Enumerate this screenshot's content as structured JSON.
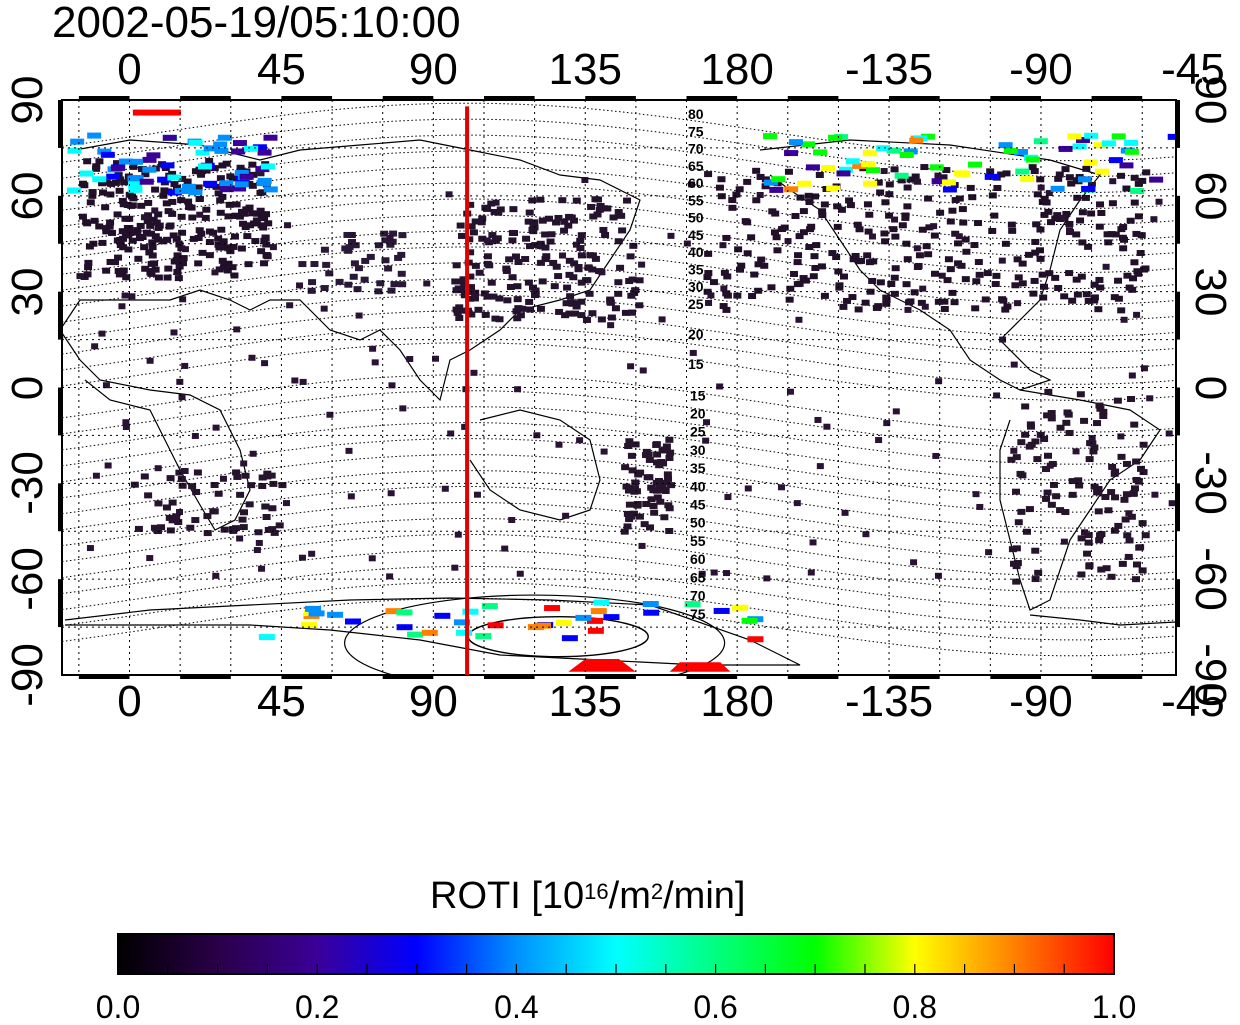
{
  "title": "2002-05-19/05:10:00",
  "map": {
    "lon_top_labels": [
      "0",
      "45",
      "90",
      "135",
      "180",
      "-135",
      "-90",
      "-45"
    ],
    "lon_bottom_labels": [
      "0",
      "45",
      "90",
      "135",
      "180",
      "-135",
      "-90",
      "-45"
    ],
    "lat_left_labels": [
      "90",
      "60",
      "30",
      "0",
      "-30",
      "-60",
      "-90"
    ],
    "lat_right_labels": [
      "90",
      "60",
      "30",
      "0",
      "-30",
      "-60",
      "-90"
    ],
    "lon_range": [
      -20,
      310
    ],
    "lat_range": [
      -90,
      90
    ],
    "terminator_lon": 100,
    "terminator_color": "#e00000",
    "mlat_labels_north": [
      "80",
      "75",
      "70",
      "65",
      "60",
      "55",
      "50",
      "45",
      "40",
      "35",
      "30",
      "25",
      "20",
      "15"
    ],
    "mlat_labels_south": [
      "15",
      "20",
      "25",
      "30",
      "35",
      "40",
      "45",
      "50",
      "55",
      "60",
      "65",
      "70",
      "75"
    ]
  },
  "colorbar": {
    "title_main": "ROTI  [10",
    "title_exp1": "16",
    "title_mid": "/m",
    "title_exp2": "2",
    "title_end": "/min]",
    "ticks": [
      "0.0",
      "0.2",
      "0.4",
      "0.6",
      "0.8",
      "1.0"
    ],
    "range": [
      0.0,
      1.0
    ],
    "colors": [
      "#000000",
      "#2a0048",
      "#3a0098",
      "#0000ff",
      "#0090ff",
      "#00ffff",
      "#00ff80",
      "#00ff00",
      "#ffff00",
      "#ff8000",
      "#ff0000"
    ]
  }
}
